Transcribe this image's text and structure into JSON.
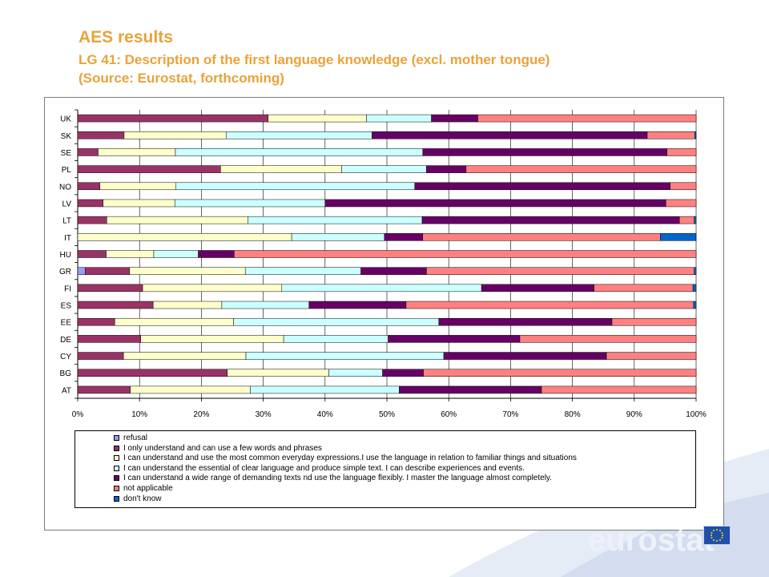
{
  "header": {
    "title": "AES results",
    "subtitle_line1": "LG 41: Description of the first language knowledge (excl. mother tongue)",
    "subtitle_line2": "(Source: Eurostat, forthcoming)"
  },
  "logo": {
    "text": "eurostat",
    "icon": "eu-flag-icon"
  },
  "colors": {
    "page_wave": "#e3eaf5",
    "title": "#e8a33a"
  },
  "chart_data": {
    "type": "bar",
    "orientation": "horizontal",
    "stacked": "percent",
    "categories": [
      "UK",
      "SK",
      "SE",
      "PL",
      "NO",
      "LV",
      "LT",
      "IT",
      "HU",
      "GR",
      "FI",
      "ES",
      "EE",
      "DE",
      "CY",
      "BG",
      "AT"
    ],
    "x_ticks": [
      "0%",
      "10%",
      "20%",
      "30%",
      "40%",
      "50%",
      "60%",
      "70%",
      "80%",
      "90%",
      "100%"
    ],
    "xlim": [
      0,
      100
    ],
    "grid": true,
    "legend_position": "bottom",
    "series": [
      {
        "name": "refusal",
        "color": "#9999ff",
        "values": [
          0,
          0,
          0,
          0,
          0,
          0,
          0,
          0,
          0,
          1.2,
          0,
          0,
          0,
          0,
          0,
          0,
          0
        ]
      },
      {
        "name": "I only understand and can use a few words and phrases",
        "color": "#993366",
        "values": [
          30.8,
          7.5,
          3.3,
          23.1,
          3.6,
          4.1,
          4.7,
          0,
          4.6,
          7.2,
          10.5,
          12.2,
          6.0,
          10.2,
          7.4,
          24.2,
          8.5
        ]
      },
      {
        "name": "I can understand and use the most common everyday expressions.I use the language in relation to familiar things and situations",
        "color": "#ffffcc",
        "values": [
          15.9,
          16.5,
          12.5,
          19.6,
          12.3,
          11.6,
          22.8,
          34.6,
          7.7,
          18.7,
          22.5,
          11.1,
          19.2,
          23.1,
          19.8,
          16.4,
          19.4
        ]
      },
      {
        "name": "I can understand the essential of clear language and produce simple text. I can describe experiences and events.",
        "color": "#ccffff",
        "values": [
          10.5,
          23.6,
          40.0,
          13.7,
          38.6,
          24.3,
          28.2,
          15.0,
          7.2,
          18.7,
          32.3,
          14.1,
          33.2,
          16.9,
          32.0,
          8.7,
          24.1
        ]
      },
      {
        "name": "I can understand a wide range of demanding texts nd use the language flexibly. I master the language almost completely.",
        "color": "#660066",
        "values": [
          7.5,
          44.5,
          39.5,
          6.4,
          41.3,
          55.1,
          41.6,
          6.2,
          5.8,
          10.6,
          18.2,
          15.7,
          28.0,
          21.3,
          26.3,
          6.6,
          23.0
        ]
      },
      {
        "name": "not applicable",
        "color": "#ff8080",
        "values": [
          35.3,
          7.7,
          4.7,
          37.2,
          4.2,
          4.9,
          2.4,
          38.4,
          74.7,
          43.3,
          16.0,
          46.5,
          13.6,
          28.5,
          14.5,
          44.1,
          25.0
        ]
      },
      {
        "name": "don't know",
        "color": "#0066cc",
        "values": [
          0,
          0.2,
          0,
          0,
          0,
          0,
          0.3,
          5.8,
          0,
          0.5,
          0.5,
          0.4,
          0,
          0,
          0,
          0,
          0
        ]
      }
    ]
  }
}
